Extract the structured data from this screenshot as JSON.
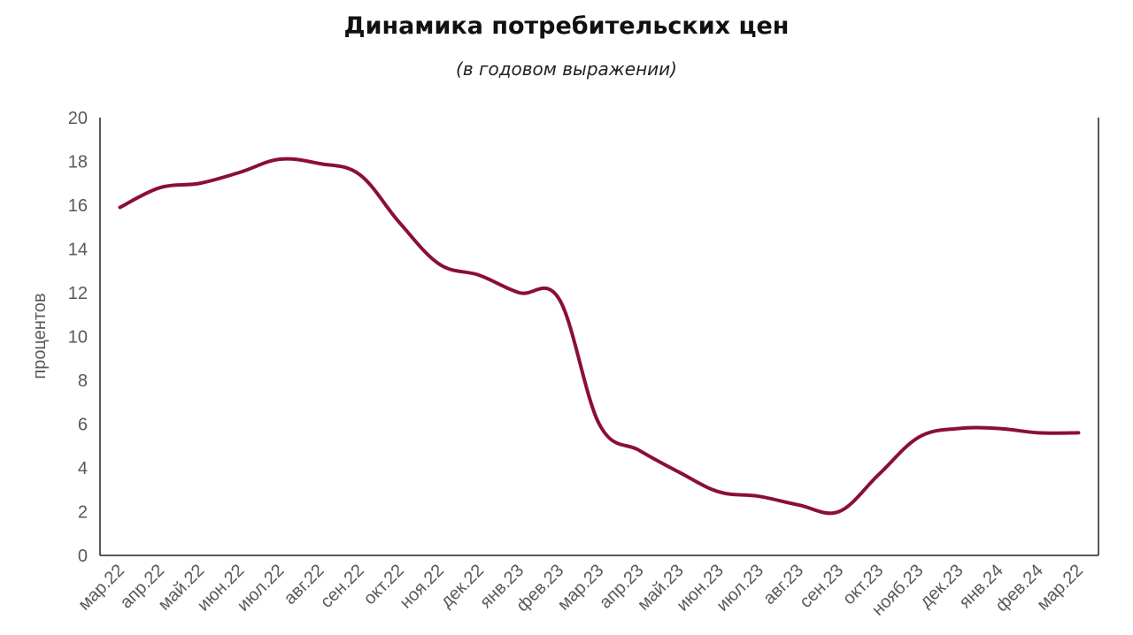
{
  "chart_data": {
    "type": "line",
    "title": "Динамика потребительских цен",
    "subtitle": "(в годовом выражении)",
    "xlabel": "",
    "ylabel": "процентов",
    "ylim": [
      0,
      20
    ],
    "yticks": [
      0,
      2,
      4,
      6,
      8,
      10,
      12,
      14,
      16,
      18,
      20
    ],
    "grid": false,
    "legend": "none",
    "categories": [
      "мар.22",
      "апр.22",
      "май.22",
      "июн.22",
      "июл.22",
      "авг.22",
      "сен.22",
      "окт.22",
      "ноя.22",
      "дек.22",
      "янв.23",
      "фев.23",
      "мар.23",
      "апр.23",
      "май.23",
      "июн.23",
      "июл.23",
      "авг.23",
      "сен.23",
      "окт.23",
      "нояб.23",
      "дек.23",
      "янв.24",
      "фев.24",
      "мар.22"
    ],
    "series": [
      {
        "color": "#8B0E3A",
        "values": [
          15.9,
          16.8,
          17.0,
          17.5,
          18.1,
          17.9,
          17.4,
          15.2,
          13.3,
          12.8,
          12.0,
          11.7,
          6.0,
          4.8,
          3.8,
          2.9,
          2.7,
          2.3,
          2.0,
          3.7,
          5.4,
          5.8,
          5.8,
          5.6,
          5.6
        ]
      }
    ]
  }
}
